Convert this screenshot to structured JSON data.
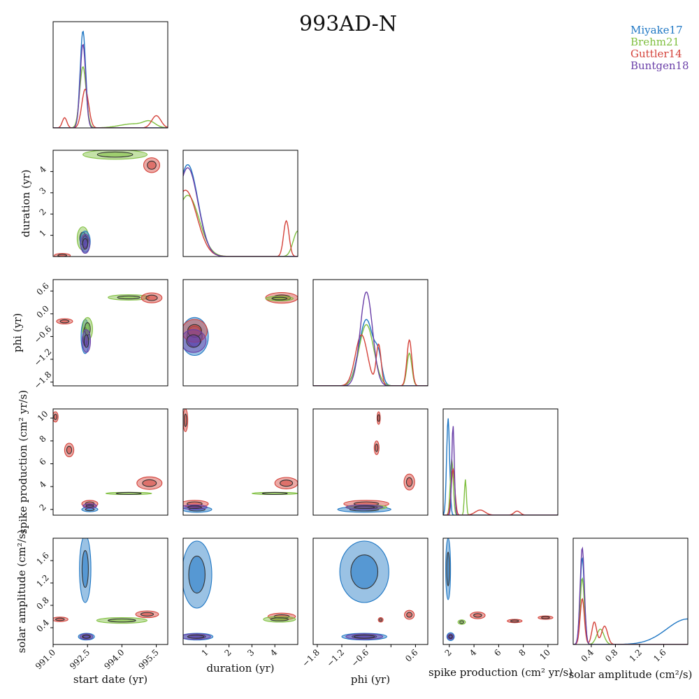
{
  "chart_data": {
    "type": "corner",
    "title": "993AD-N",
    "colors": {
      "Miyake17": "#1f77c4",
      "Brehm21": "#7fbf3f",
      "Guttler14": "#d4423a",
      "Buntgen18": "#6a3fa8"
    },
    "series": [
      {
        "name": "Miyake17"
      },
      {
        "name": "Brehm21"
      },
      {
        "name": "Guttler14"
      },
      {
        "name": "Buntgen18"
      }
    ],
    "parameters": [
      {
        "key": "start",
        "label": "start date (yr)",
        "range": [
          991.0,
          996.0
        ],
        "ticks": [
          991.0,
          992.5,
          994.0,
          995.5
        ],
        "tick_labels": [
          "991.0",
          "992.5",
          "994.0",
          "995.5"
        ]
      },
      {
        "key": "duration",
        "label": "duration (yr)",
        "range": [
          0,
          5
        ],
        "ticks": [
          1,
          2,
          3,
          4
        ],
        "tick_labels": [
          "1",
          "2",
          "3",
          "4"
        ]
      },
      {
        "key": "phi",
        "label": "phi (yr)",
        "range": [
          -1.9,
          0.9
        ],
        "ticks": [
          -1.8,
          -1.2,
          -0.6,
          0.0,
          0.6
        ],
        "tick_labels": [
          "−1.8",
          "−1.2",
          "−0.6",
          "0.0",
          "0.6"
        ],
        "x_tick_labels": [
          "−1.8",
          "−1.2",
          "−0.6",
          "0.6"
        ]
      },
      {
        "key": "spike",
        "label": "spike production (cm² yr/s)",
        "range": [
          1.5,
          10.8
        ],
        "ticks": [
          2,
          4,
          6,
          8,
          10
        ],
        "tick_labels": [
          "2",
          "4",
          "6",
          "8",
          "10"
        ]
      },
      {
        "key": "solar",
        "label": "solar amplitude (cm²/s)",
        "range": [
          0.1,
          2.0
        ],
        "ticks": [
          0.4,
          0.8,
          1.2,
          1.6
        ],
        "tick_labels": [
          "0.4",
          "0.8",
          "1.2",
          "1.6"
        ]
      }
    ],
    "marginals": [
      {
        "param": "start",
        "ymax": 1.0,
        "curves": [
          {
            "series": "Miyake17",
            "peaks": [
              [
                992.3,
                0.95,
                0.12
              ]
            ]
          },
          {
            "series": "Brehm21",
            "peaks": [
              [
                992.3,
                0.6,
                0.14
              ],
              [
                994.5,
                0.04,
                0.6
              ],
              [
                995.2,
                0.05,
                0.25
              ]
            ]
          },
          {
            "series": "Guttler14",
            "peaks": [
              [
                991.5,
                0.1,
                0.1
              ],
              [
                992.4,
                0.38,
                0.15
              ],
              [
                995.5,
                0.12,
                0.2
              ]
            ]
          },
          {
            "series": "Buntgen18",
            "peaks": [
              [
                992.3,
                0.82,
                0.12
              ]
            ]
          }
        ]
      },
      {
        "param": "duration",
        "ymax": 1.0,
        "curves": [
          {
            "series": "Miyake17",
            "peaks": [
              [
                0.2,
                0.9,
                0.45
              ]
            ]
          },
          {
            "series": "Brehm21",
            "peaks": [
              [
                0.2,
                0.6,
                0.5
              ],
              [
                5.0,
                0.25,
                0.2
              ]
            ]
          },
          {
            "series": "Guttler14",
            "peaks": [
              [
                0.1,
                0.65,
                0.5
              ],
              [
                4.5,
                0.35,
                0.12
              ]
            ]
          },
          {
            "series": "Buntgen18",
            "peaks": [
              [
                0.2,
                0.87,
                0.45
              ]
            ]
          }
        ]
      },
      {
        "param": "phi",
        "ymax": 1.0,
        "curves": [
          {
            "series": "Miyake17",
            "peaks": [
              [
                -0.6,
                0.65,
                0.18
              ],
              [
                -0.3,
                0.2,
                0.08
              ]
            ]
          },
          {
            "series": "Brehm21",
            "peaks": [
              [
                -0.6,
                0.6,
                0.18
              ],
              [
                0.45,
                0.32,
                0.06
              ]
            ]
          },
          {
            "series": "Guttler14",
            "peaks": [
              [
                -0.72,
                0.5,
                0.15
              ],
              [
                -0.3,
                0.4,
                0.06
              ],
              [
                0.45,
                0.45,
                0.06
              ]
            ]
          },
          {
            "series": "Buntgen18",
            "peaks": [
              [
                -0.6,
                0.92,
                0.15
              ]
            ]
          }
        ]
      },
      {
        "param": "spike",
        "ymax": 1.0,
        "curves": [
          {
            "series": "Miyake17",
            "peaks": [
              [
                1.9,
                0.95,
                0.12
              ]
            ]
          },
          {
            "series": "Brehm21",
            "peaks": [
              [
                2.2,
                0.55,
                0.12
              ],
              [
                3.3,
                0.35,
                0.08
              ]
            ]
          },
          {
            "series": "Guttler14",
            "peaks": [
              [
                2.3,
                0.45,
                0.15
              ],
              [
                4.5,
                0.05,
                0.4
              ],
              [
                7.5,
                0.04,
                0.25
              ]
            ]
          },
          {
            "series": "Buntgen18",
            "peaks": [
              [
                2.3,
                0.88,
                0.1
              ]
            ]
          }
        ]
      },
      {
        "param": "solar",
        "ymax": 1.0,
        "curves": [
          {
            "series": "Miyake17",
            "peaks": [
              [
                0.25,
                0.85,
                0.035
              ],
              [
                2.0,
                0.25,
                0.35
              ]
            ]
          },
          {
            "series": "Brehm21",
            "peaks": [
              [
                0.25,
                0.65,
                0.035
              ],
              [
                0.55,
                0.15,
                0.06
              ]
            ]
          },
          {
            "series": "Guttler14",
            "peaks": [
              [
                0.25,
                0.45,
                0.035
              ],
              [
                0.45,
                0.22,
                0.04
              ],
              [
                0.62,
                0.18,
                0.05
              ]
            ]
          },
          {
            "series": "Buntgen18",
            "peaks": [
              [
                0.25,
                0.95,
                0.035
              ]
            ]
          }
        ]
      }
    ],
    "contours": [
      {
        "x": "start",
        "y": "duration",
        "regions": [
          {
            "series": "Brehm21",
            "cx": 993.7,
            "cy": 4.8,
            "sx": 1.4,
            "sy": 0.22
          },
          {
            "series": "Guttler14",
            "cx": 995.3,
            "cy": 4.3,
            "sx": 0.35,
            "sy": 0.35
          },
          {
            "series": "Brehm21",
            "cx": 992.3,
            "cy": 0.85,
            "sx": 0.25,
            "sy": 0.55
          },
          {
            "series": "Miyake17",
            "cx": 992.4,
            "cy": 0.7,
            "sx": 0.22,
            "sy": 0.5
          },
          {
            "series": "Guttler14",
            "cx": 991.4,
            "cy": 0.05,
            "sx": 0.35,
            "sy": 0.1
          },
          {
            "series": "Buntgen18",
            "cx": 992.4,
            "cy": 0.6,
            "sx": 0.2,
            "sy": 0.45
          }
        ]
      },
      {
        "x": "start",
        "y": "phi",
        "regions": [
          {
            "series": "Brehm21",
            "cx": 994.3,
            "cy": 0.43,
            "sx": 0.9,
            "sy": 0.07
          },
          {
            "series": "Guttler14",
            "cx": 995.3,
            "cy": 0.42,
            "sx": 0.45,
            "sy": 0.13
          },
          {
            "series": "Guttler14",
            "cx": 991.5,
            "cy": -0.2,
            "sx": 0.35,
            "sy": 0.07
          },
          {
            "series": "Miyake17",
            "cx": 992.4,
            "cy": -0.6,
            "sx": 0.18,
            "sy": 0.45
          },
          {
            "series": "Brehm21",
            "cx": 992.5,
            "cy": -0.4,
            "sx": 0.22,
            "sy": 0.3
          },
          {
            "series": "Buntgen18",
            "cx": 992.45,
            "cy": -0.72,
            "sx": 0.18,
            "sy": 0.3
          }
        ]
      },
      {
        "x": "duration",
        "y": "phi",
        "regions": [
          {
            "series": "Guttler14",
            "cx": 4.3,
            "cy": 0.42,
            "sx": 0.7,
            "sy": 0.14
          },
          {
            "series": "Brehm21",
            "cx": 4.2,
            "cy": 0.4,
            "sx": 0.6,
            "sy": 0.06
          },
          {
            "series": "Miyake17",
            "cx": 0.5,
            "cy": -0.6,
            "sx": 0.6,
            "sy": 0.5
          },
          {
            "series": "Guttler14",
            "cx": 0.5,
            "cy": -0.45,
            "sx": 0.55,
            "sy": 0.3
          },
          {
            "series": "Buntgen18",
            "cx": 0.45,
            "cy": -0.72,
            "sx": 0.55,
            "sy": 0.3
          }
        ]
      },
      {
        "x": "start",
        "y": "spike",
        "regions": [
          {
            "series": "Guttler14",
            "cx": 991.1,
            "cy": 10.1,
            "sx": 0.12,
            "sy": 0.45
          },
          {
            "series": "Guttler14",
            "cx": 991.7,
            "cy": 7.2,
            "sx": 0.2,
            "sy": 0.6
          },
          {
            "series": "Guttler14",
            "cx": 995.2,
            "cy": 4.3,
            "sx": 0.55,
            "sy": 0.55
          },
          {
            "series": "Brehm21",
            "cx": 994.3,
            "cy": 3.4,
            "sx": 1.0,
            "sy": 0.1
          },
          {
            "series": "Miyake17",
            "cx": 992.6,
            "cy": 2.0,
            "sx": 0.35,
            "sy": 0.2
          },
          {
            "series": "Guttler14",
            "cx": 992.6,
            "cy": 2.5,
            "sx": 0.35,
            "sy": 0.3
          },
          {
            "series": "Buntgen18",
            "cx": 992.6,
            "cy": 2.3,
            "sx": 0.3,
            "sy": 0.2
          }
        ]
      },
      {
        "x": "duration",
        "y": "spike",
        "regions": [
          {
            "series": "Guttler14",
            "cx": 0.1,
            "cy": 9.8,
            "sx": 0.1,
            "sy": 1.0
          },
          {
            "series": "Guttler14",
            "cx": 4.5,
            "cy": 4.3,
            "sx": 0.5,
            "sy": 0.5
          },
          {
            "series": "Brehm21",
            "cx": 4.0,
            "cy": 3.4,
            "sx": 1.0,
            "sy": 0.1
          },
          {
            "series": "Miyake17",
            "cx": 0.6,
            "cy": 2.0,
            "sx": 0.65,
            "sy": 0.25
          },
          {
            "series": "Guttler14",
            "cx": 0.5,
            "cy": 2.5,
            "sx": 0.6,
            "sy": 0.3
          },
          {
            "series": "Buntgen18",
            "cx": 0.5,
            "cy": 2.2,
            "sx": 0.55,
            "sy": 0.2
          }
        ]
      },
      {
        "x": "phi",
        "y": "spike",
        "regions": [
          {
            "series": "Guttler14",
            "cx": -0.3,
            "cy": 10.0,
            "sx": 0.04,
            "sy": 0.55
          },
          {
            "series": "Guttler14",
            "cx": -0.35,
            "cy": 7.4,
            "sx": 0.06,
            "sy": 0.6
          },
          {
            "series": "Guttler14",
            "cx": 0.45,
            "cy": 4.4,
            "sx": 0.13,
            "sy": 0.7
          },
          {
            "series": "Miyake17",
            "cx": -0.65,
            "cy": 2.0,
            "sx": 0.65,
            "sy": 0.25
          },
          {
            "series": "Guttler14",
            "cx": -0.6,
            "cy": 2.5,
            "sx": 0.55,
            "sy": 0.3
          },
          {
            "series": "Brehm21",
            "cx": -0.6,
            "cy": 2.2,
            "sx": 0.5,
            "sy": 0.2
          },
          {
            "series": "Buntgen18",
            "cx": -0.65,
            "cy": 2.2,
            "sx": 0.45,
            "sy": 0.2
          }
        ]
      },
      {
        "x": "start",
        "y": "solar",
        "regions": [
          {
            "series": "Miyake17",
            "cx": 992.4,
            "cy": 1.45,
            "sx": 0.25,
            "sy": 0.6
          },
          {
            "series": "Guttler14",
            "cx": 991.3,
            "cy": 0.55,
            "sx": 0.35,
            "sy": 0.04
          },
          {
            "series": "Brehm21",
            "cx": 994.0,
            "cy": 0.53,
            "sx": 1.1,
            "sy": 0.05
          },
          {
            "series": "Guttler14",
            "cx": 995.1,
            "cy": 0.64,
            "sx": 0.5,
            "sy": 0.06
          },
          {
            "series": "Miyake17",
            "cx": 992.45,
            "cy": 0.24,
            "sx": 0.35,
            "sy": 0.06
          },
          {
            "series": "Buntgen18",
            "cx": 992.45,
            "cy": 0.24,
            "sx": 0.28,
            "sy": 0.05
          }
        ]
      },
      {
        "x": "duration",
        "y": "solar",
        "regions": [
          {
            "series": "Miyake17",
            "cx": 0.6,
            "cy": 1.35,
            "sx": 0.65,
            "sy": 0.6
          },
          {
            "series": "Guttler14",
            "cx": 4.3,
            "cy": 0.6,
            "sx": 0.6,
            "sy": 0.06
          },
          {
            "series": "Brehm21",
            "cx": 4.2,
            "cy": 0.55,
            "sx": 0.7,
            "sy": 0.05
          },
          {
            "series": "Miyake17",
            "cx": 0.6,
            "cy": 0.24,
            "sx": 0.7,
            "sy": 0.06
          },
          {
            "series": "Buntgen18",
            "cx": 0.55,
            "cy": 0.24,
            "sx": 0.65,
            "sy": 0.05
          }
        ]
      },
      {
        "x": "phi",
        "y": "solar",
        "regions": [
          {
            "series": "Miyake17",
            "cx": -0.65,
            "cy": 1.4,
            "sx": 0.6,
            "sy": 0.55
          },
          {
            "series": "Guttler14",
            "cx": -0.25,
            "cy": 0.54,
            "sx": 0.06,
            "sy": 0.04
          },
          {
            "series": "Guttler14",
            "cx": 0.45,
            "cy": 0.63,
            "sx": 0.12,
            "sy": 0.08
          },
          {
            "series": "Miyake17",
            "cx": -0.65,
            "cy": 0.24,
            "sx": 0.55,
            "sy": 0.06
          },
          {
            "series": "Buntgen18",
            "cx": -0.65,
            "cy": 0.24,
            "sx": 0.45,
            "sy": 0.05
          }
        ]
      },
      {
        "x": "spike",
        "y": "solar",
        "regions": [
          {
            "series": "Miyake17",
            "cx": 1.9,
            "cy": 1.45,
            "sx": 0.2,
            "sy": 0.55
          },
          {
            "series": "Brehm21",
            "cx": 3.0,
            "cy": 0.5,
            "sx": 0.3,
            "sy": 0.04
          },
          {
            "series": "Guttler14",
            "cx": 4.3,
            "cy": 0.62,
            "sx": 0.6,
            "sy": 0.06
          },
          {
            "series": "Guttler14",
            "cx": 7.3,
            "cy": 0.52,
            "sx": 0.6,
            "sy": 0.03
          },
          {
            "series": "Guttler14",
            "cx": 9.8,
            "cy": 0.58,
            "sx": 0.6,
            "sy": 0.03
          },
          {
            "series": "Miyake17",
            "cx": 2.1,
            "cy": 0.24,
            "sx": 0.3,
            "sy": 0.07
          },
          {
            "series": "Buntgen18",
            "cx": 2.1,
            "cy": 0.24,
            "sx": 0.25,
            "sy": 0.05
          }
        ]
      }
    ],
    "grid": false,
    "legend_position": "top-right"
  }
}
